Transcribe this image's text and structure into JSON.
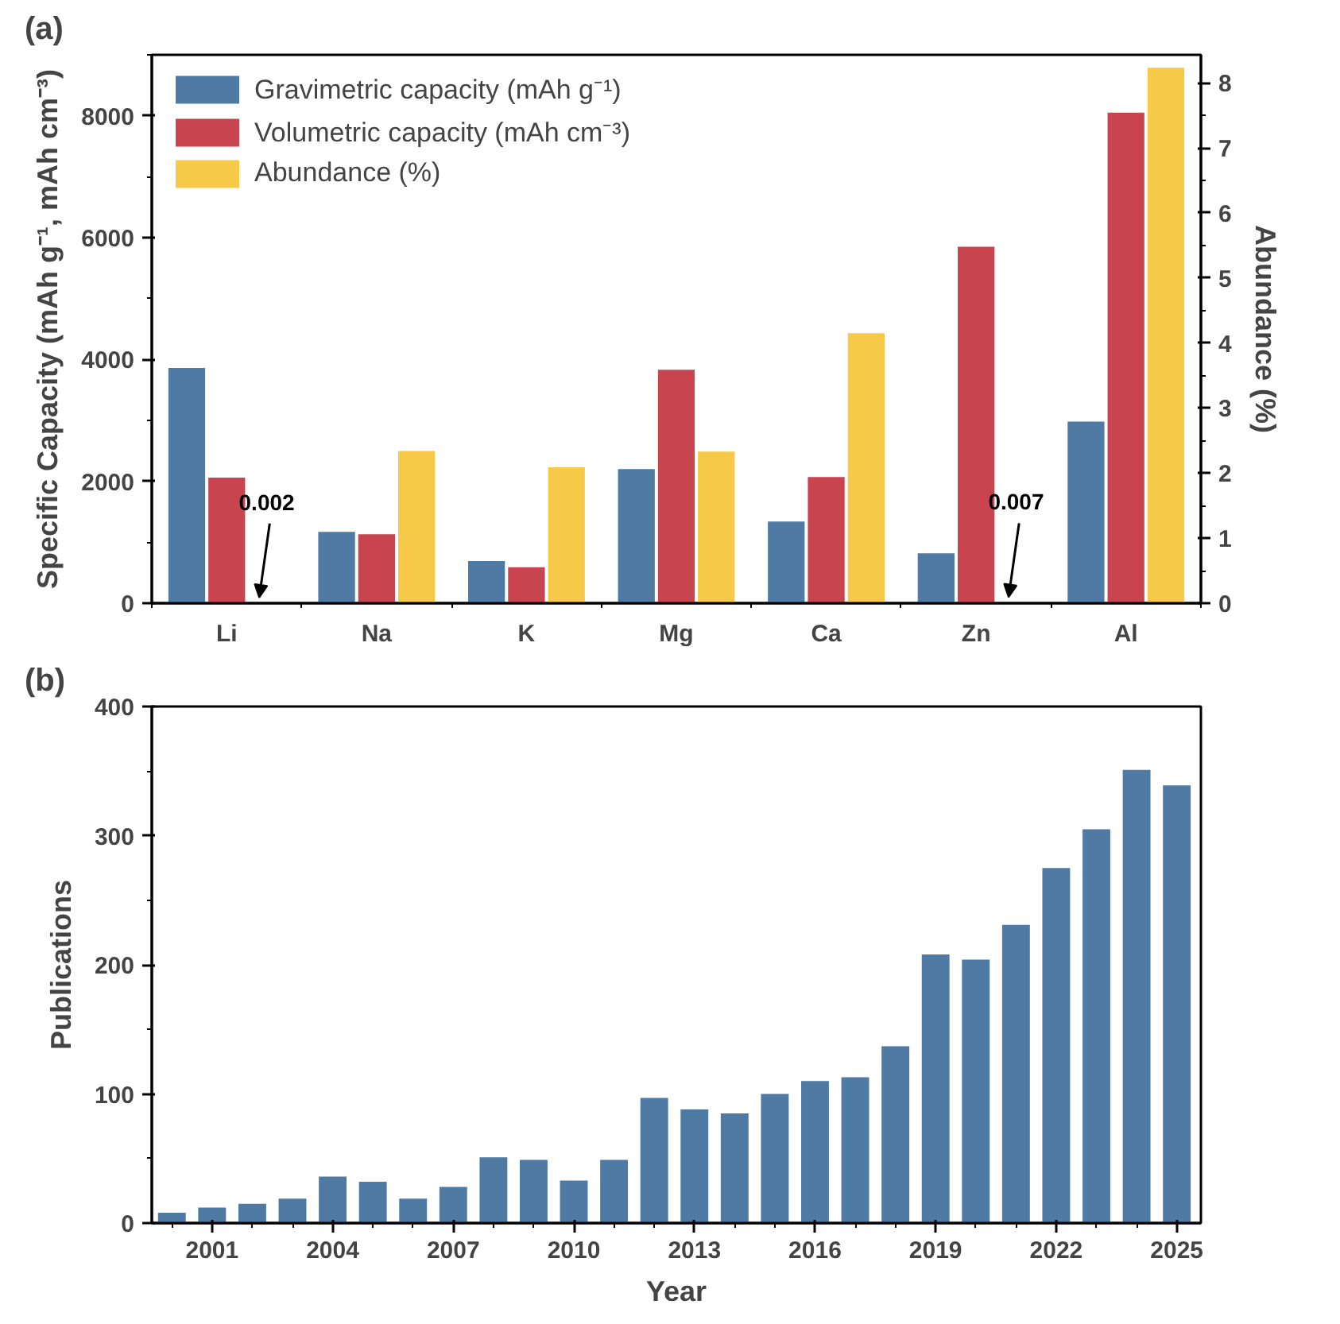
{
  "chart_data": [
    {
      "type": "bar",
      "title": "(a)",
      "ylabel": "Specific Capacity (mAh g⁻¹, mAh cm⁻³)",
      "y2label": "Abundance (%)",
      "categories": [
        "Li",
        "Na",
        "K",
        "Mg",
        "Ca",
        "Zn",
        "Al"
      ],
      "series": [
        {
          "name": "Gravimetric capacity (mAh g⁻¹)",
          "color": "#4e7aa3",
          "values": [
            3860,
            1170,
            690,
            2200,
            1340,
            820,
            2980
          ]
        },
        {
          "name": "Volumetric capacity (mAh cm⁻³)",
          "color": "#c8444f",
          "values": [
            2060,
            1130,
            590,
            3830,
            2070,
            5850,
            8050
          ]
        },
        {
          "name": "Abundance (%)",
          "color": "#f7c948",
          "axis": "y2",
          "values": [
            0.002,
            2.34,
            2.09,
            2.33,
            4.15,
            0.007,
            8.23
          ],
          "value_labels": [
            "0.002",
            null,
            null,
            null,
            null,
            "0.007",
            null
          ]
        }
      ],
      "ylim": [
        0,
        9000
      ],
      "yticks": [
        0,
        2000,
        4000,
        6000,
        8000
      ],
      "y2lim": [
        0,
        8.43
      ],
      "y2ticks": [
        0,
        1,
        2,
        3,
        4,
        5,
        6,
        7,
        8
      ],
      "legend": "top left",
      "grid": false
    },
    {
      "type": "bar",
      "title": "(b)",
      "xlabel": "Year",
      "ylabel": "Publications",
      "x": [
        2000,
        2001,
        2002,
        2003,
        2004,
        2005,
        2006,
        2007,
        2008,
        2009,
        2010,
        2011,
        2012,
        2013,
        2014,
        2015,
        2016,
        2017,
        2018,
        2019,
        2020,
        2021,
        2022,
        2023,
        2024,
        2025
      ],
      "series": [
        {
          "color": "#4e7aa3",
          "values": [
            8,
            12,
            15,
            19,
            36,
            32,
            19,
            28,
            51,
            49,
            33,
            49,
            97,
            88,
            85,
            100,
            110,
            113,
            137,
            208,
            204,
            231,
            275,
            305,
            351,
            339
          ]
        }
      ],
      "xlim": [
        1999.5,
        2025.6
      ],
      "xticks": [
        2001,
        2004,
        2007,
        2010,
        2013,
        2016,
        2019,
        2022,
        2025
      ],
      "ylim": [
        0,
        400
      ],
      "yticks": [
        0,
        100,
        200,
        300,
        400
      ],
      "grid": false
    }
  ]
}
